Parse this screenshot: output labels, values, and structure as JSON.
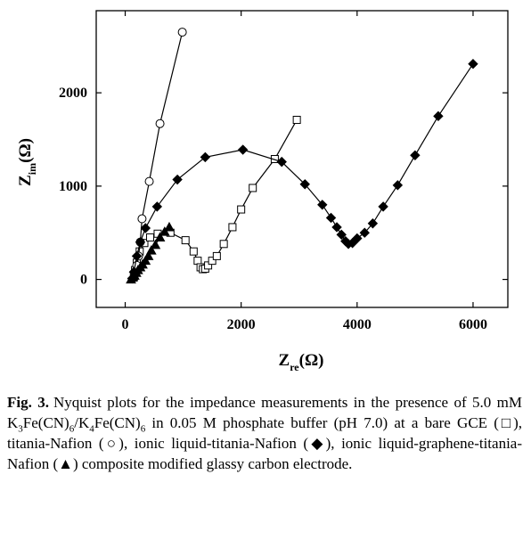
{
  "chart_data": {
    "type": "line",
    "xlabel": [
      "Z",
      "re",
      "(Ω)"
    ],
    "ylabel": [
      "Z",
      "im",
      "(Ω)"
    ],
    "xlim": [
      -500,
      6600
    ],
    "ylim": [
      -300,
      2880
    ],
    "xticks": [
      0,
      2000,
      4000,
      6000
    ],
    "yticks": [
      0,
      1000,
      2000
    ],
    "series": [
      {
        "color": "#000000",
        "marker": "square",
        "filled": false,
        "x": [
          150,
          170,
          200,
          250,
          330,
          430,
          560,
          780,
          1040,
          1180,
          1250,
          1300,
          1340,
          1380,
          1430,
          1500,
          1580,
          1700,
          1850,
          2000,
          2200,
          2580,
          2960
        ],
        "values": [
          30,
          100,
          180,
          300,
          390,
          450,
          490,
          500,
          420,
          300,
          200,
          130,
          110,
          115,
          150,
          200,
          250,
          380,
          560,
          750,
          980,
          1290,
          1710
        ]
      },
      {
        "color": "#000000",
        "marker": "circle",
        "filled": false,
        "x": [
          150,
          170,
          200,
          230,
          260,
          290,
          415,
          600,
          985
        ],
        "values": [
          20,
          80,
          150,
          250,
          400,
          650,
          1050,
          1670,
          2650
        ]
      },
      {
        "color": "#000000",
        "marker": "diamond",
        "filled": true,
        "x": [
          120,
          150,
          200,
          260,
          350,
          550,
          900,
          1380,
          2030,
          2700,
          3100,
          3400,
          3550,
          3650,
          3730,
          3800,
          3850,
          3920,
          4000,
          4130,
          4270,
          4450,
          4700,
          5000,
          5400,
          6000
        ],
        "values": [
          10,
          80,
          250,
          400,
          550,
          780,
          1070,
          1310,
          1390,
          1260,
          1020,
          800,
          660,
          560,
          480,
          410,
          380,
          390,
          440,
          500,
          600,
          780,
          1010,
          1330,
          1750,
          2310
        ]
      },
      {
        "color": "#000000",
        "marker": "triangle",
        "filled": true,
        "x": [
          100,
          130,
          160,
          190,
          220,
          260,
          300,
          350,
          400,
          450,
          520,
          600,
          680,
          760
        ],
        "values": [
          0,
          20,
          40,
          70,
          100,
          130,
          160,
          200,
          250,
          310,
          370,
          450,
          510,
          560
        ]
      }
    ]
  },
  "caption": {
    "label": "Fig. 3.",
    "text": [
      "Nyquist plots for the impedance measurements in the presence of 5.0 mM K",
      "3",
      "Fe(CN)",
      "6",
      "/K",
      "4",
      "Fe(CN)",
      "6",
      " in 0.05 M phosphate buffer (pH 7.0) at a bare GCE (□), titania-Nafion (○), ionic liquid-titania-Nafion (◆), ionic liquid-graphene-titania-Nafion (▲) composite modified glassy carbon electrode."
    ]
  }
}
